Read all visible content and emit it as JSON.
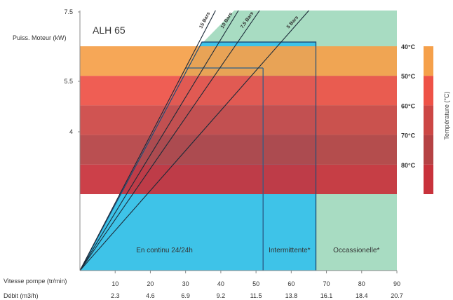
{
  "chart_data": {
    "type": "area",
    "title": "ALH 65",
    "ylabel": "Puiss. Moteur (kW)",
    "y_ticks": [
      "7.5",
      "5.5",
      "4"
    ],
    "x_axis_label_speed": "Vitesse pompe (tr/min)",
    "x_axis_label_flow": "Débit (m3/h)",
    "x_ticks_speed": [
      "10",
      "20",
      "30",
      "40",
      "50",
      "60",
      "70",
      "80",
      "90"
    ],
    "x_ticks_flow": [
      "2.3",
      "4.6",
      "6.9",
      "9.2",
      "11.5",
      "13.8",
      "16.1",
      "18.4",
      "20.7"
    ],
    "xlim": [
      0,
      90
    ],
    "pressure_lines": [
      {
        "label": "15 Bars",
        "x_at_top": 38.5
      },
      {
        "label": "10 Bars",
        "x_at_top": 45
      },
      {
        "label": "7.5 Bars",
        "x_at_top": 51
      },
      {
        "label": "5 Bars",
        "x_at_top": 65
      }
    ],
    "zones": [
      {
        "label": "En continu 24/24h",
        "x_range": [
          0,
          52
        ],
        "color": "#3ec3e8"
      },
      {
        "label": "Intermittente*",
        "x_range": [
          52,
          67
        ],
        "color": "#3ec3e8"
      },
      {
        "label": "Occassionelle*",
        "x_range": [
          67,
          90
        ],
        "color": "#a8dcc2"
      }
    ],
    "temperature_bands": [
      {
        "label": "40°C",
        "color": "#f5a04a"
      },
      {
        "label": "50°C",
        "color": "#ee5247"
      },
      {
        "label": "60°C",
        "color": "#cc4745"
      },
      {
        "label": "70°C",
        "color": "#b54244"
      },
      {
        "label": "80°C",
        "color": "#c8323b"
      }
    ],
    "temperature_axis_label": "Température (°C)",
    "colors": {
      "zone_blue": "#3ec3e8",
      "zone_green": "#a8dcc2",
      "dark_edge": "#1e4e78",
      "axis": "#888888"
    }
  }
}
